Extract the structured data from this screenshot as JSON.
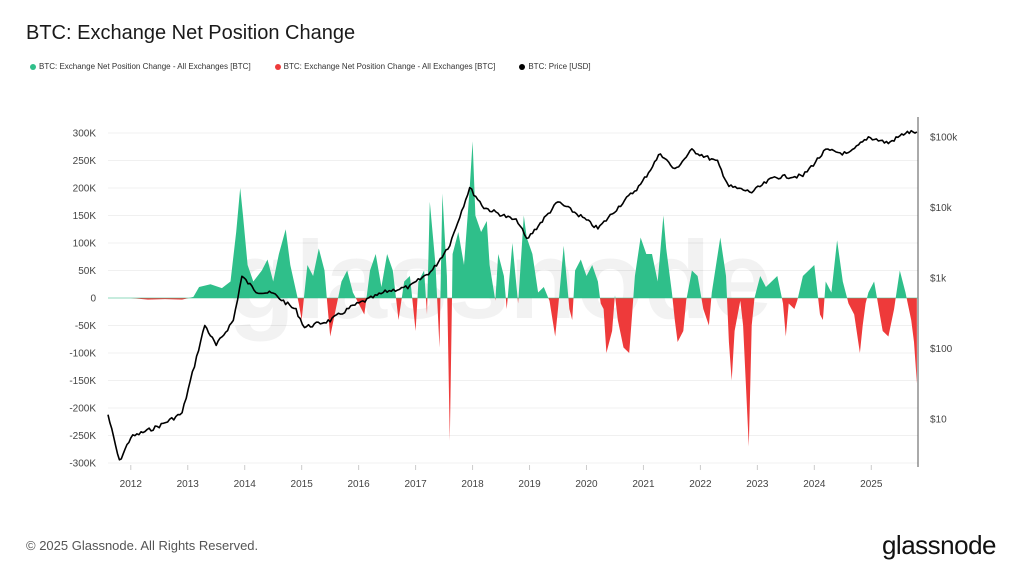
{
  "chart_data": {
    "type": "area",
    "title": "BTC: Exchange Net Position Change",
    "legend_placement": "top-left",
    "grid": true,
    "colors": {
      "positive": "#2fbf8a",
      "negative": "#ee3a3a",
      "price": "#000000"
    },
    "legend": [
      {
        "label": "BTC: Exchange Net Position Change - All Exchanges [BTC]",
        "color": "#2fbf8a"
      },
      {
        "label": "BTC: Exchange Net Position Change - All Exchanges [BTC]",
        "color": "#ee3a3a"
      },
      {
        "label": "BTC: Price [USD]",
        "color": "#000000"
      }
    ],
    "x_ticks": [
      "2012",
      "2013",
      "2014",
      "2015",
      "2016",
      "2017",
      "2018",
      "2019",
      "2020",
      "2021",
      "2022",
      "2023",
      "2024",
      "2025"
    ],
    "xlim": [
      2011.6,
      2025.82
    ],
    "y_left": {
      "ticks": [
        "300K",
        "250K",
        "200K",
        "150K",
        "100K",
        "50K",
        "0",
        "-50K",
        "-100K",
        "-150K",
        "-200K",
        "-250K",
        "-300K"
      ],
      "ylim": [
        -300000,
        300000
      ]
    },
    "y_right": {
      "scale": "log",
      "ticks": [
        "$100k",
        "$10k",
        "$1k",
        "$100",
        "$10"
      ],
      "ylim": [
        2,
        150000
      ]
    },
    "series": [
      {
        "key": "net_position",
        "unit": "BTC",
        "points": [
          [
            2011.6,
            0
          ],
          [
            2012.0,
            0
          ],
          [
            2012.3,
            -3000
          ],
          [
            2012.6,
            -2000
          ],
          [
            2012.9,
            -3000
          ],
          [
            2013.1,
            2000
          ],
          [
            2013.2,
            20000
          ],
          [
            2013.4,
            25000
          ],
          [
            2013.6,
            18000
          ],
          [
            2013.75,
            30000
          ],
          [
            2013.85,
            120000
          ],
          [
            2013.92,
            200000
          ],
          [
            2013.97,
            150000
          ],
          [
            2014.05,
            60000
          ],
          [
            2014.15,
            30000
          ],
          [
            2014.3,
            50000
          ],
          [
            2014.4,
            70000
          ],
          [
            2014.5,
            30000
          ],
          [
            2014.6,
            80000
          ],
          [
            2014.72,
            125000
          ],
          [
            2014.8,
            60000
          ],
          [
            2014.95,
            -10000
          ],
          [
            2015.0,
            -40000
          ],
          [
            2015.1,
            60000
          ],
          [
            2015.2,
            40000
          ],
          [
            2015.3,
            90000
          ],
          [
            2015.4,
            50000
          ],
          [
            2015.5,
            -70000
          ],
          [
            2015.6,
            -20000
          ],
          [
            2015.7,
            30000
          ],
          [
            2015.8,
            50000
          ],
          [
            2015.9,
            10000
          ],
          [
            2016.0,
            -10000
          ],
          [
            2016.1,
            -30000
          ],
          [
            2016.2,
            50000
          ],
          [
            2016.3,
            80000
          ],
          [
            2016.4,
            20000
          ],
          [
            2016.5,
            80000
          ],
          [
            2016.6,
            50000
          ],
          [
            2016.7,
            -40000
          ],
          [
            2016.8,
            30000
          ],
          [
            2016.9,
            40000
          ],
          [
            2017.0,
            -60000
          ],
          [
            2017.05,
            30000
          ],
          [
            2017.15,
            50000
          ],
          [
            2017.2,
            -30000
          ],
          [
            2017.25,
            175000
          ],
          [
            2017.35,
            60000
          ],
          [
            2017.42,
            -90000
          ],
          [
            2017.47,
            190000
          ],
          [
            2017.55,
            40000
          ],
          [
            2017.6,
            -260000
          ],
          [
            2017.65,
            80000
          ],
          [
            2017.75,
            120000
          ],
          [
            2017.85,
            60000
          ],
          [
            2017.95,
            200000
          ],
          [
            2018.0,
            285000
          ],
          [
            2018.05,
            150000
          ],
          [
            2018.15,
            120000
          ],
          [
            2018.25,
            140000
          ],
          [
            2018.3,
            60000
          ],
          [
            2018.4,
            -5000
          ],
          [
            2018.45,
            80000
          ],
          [
            2018.55,
            40000
          ],
          [
            2018.6,
            -20000
          ],
          [
            2018.7,
            100000
          ],
          [
            2018.8,
            -10000
          ],
          [
            2018.9,
            150000
          ],
          [
            2018.95,
            110000
          ],
          [
            2019.05,
            80000
          ],
          [
            2019.15,
            10000
          ],
          [
            2019.25,
            20000
          ],
          [
            2019.35,
            -5000
          ],
          [
            2019.45,
            -70000
          ],
          [
            2019.5,
            -20000
          ],
          [
            2019.6,
            95000
          ],
          [
            2019.7,
            -20000
          ],
          [
            2019.75,
            -40000
          ],
          [
            2019.8,
            50000
          ],
          [
            2019.9,
            70000
          ],
          [
            2020.0,
            40000
          ],
          [
            2020.1,
            60000
          ],
          [
            2020.2,
            30000
          ],
          [
            2020.25,
            -10000
          ],
          [
            2020.3,
            -20000
          ],
          [
            2020.35,
            -100000
          ],
          [
            2020.45,
            -60000
          ],
          [
            2020.5,
            5000
          ],
          [
            2020.55,
            -40000
          ],
          [
            2020.65,
            -90000
          ],
          [
            2020.75,
            -100000
          ],
          [
            2020.8,
            -30000
          ],
          [
            2020.85,
            40000
          ],
          [
            2020.95,
            110000
          ],
          [
            2021.05,
            80000
          ],
          [
            2021.15,
            80000
          ],
          [
            2021.25,
            30000
          ],
          [
            2021.35,
            150000
          ],
          [
            2021.4,
            90000
          ],
          [
            2021.5,
            10000
          ],
          [
            2021.55,
            -40000
          ],
          [
            2021.6,
            -80000
          ],
          [
            2021.7,
            -60000
          ],
          [
            2021.75,
            -5000
          ],
          [
            2021.85,
            50000
          ],
          [
            2021.95,
            40000
          ],
          [
            2022.05,
            -20000
          ],
          [
            2022.15,
            -50000
          ],
          [
            2022.2,
            10000
          ],
          [
            2022.35,
            110000
          ],
          [
            2022.45,
            40000
          ],
          [
            2022.5,
            -80000
          ],
          [
            2022.55,
            -150000
          ],
          [
            2022.6,
            -60000
          ],
          [
            2022.7,
            -5000
          ],
          [
            2022.75,
            -50000
          ],
          [
            2022.85,
            -270000
          ],
          [
            2022.9,
            -50000
          ],
          [
            2022.95,
            0
          ],
          [
            2023.05,
            40000
          ],
          [
            2023.15,
            20000
          ],
          [
            2023.25,
            30000
          ],
          [
            2023.35,
            40000
          ],
          [
            2023.45,
            -10000
          ],
          [
            2023.5,
            -70000
          ],
          [
            2023.55,
            -10000
          ],
          [
            2023.65,
            -20000
          ],
          [
            2023.7,
            -5000
          ],
          [
            2023.8,
            40000
          ],
          [
            2023.9,
            50000
          ],
          [
            2024.0,
            60000
          ],
          [
            2024.1,
            -30000
          ],
          [
            2024.15,
            -40000
          ],
          [
            2024.2,
            30000
          ],
          [
            2024.3,
            10000
          ],
          [
            2024.4,
            105000
          ],
          [
            2024.5,
            30000
          ],
          [
            2024.6,
            -10000
          ],
          [
            2024.7,
            -30000
          ],
          [
            2024.8,
            -100000
          ],
          [
            2024.85,
            -50000
          ],
          [
            2024.9,
            -10000
          ],
          [
            2024.95,
            10000
          ],
          [
            2025.05,
            30000
          ],
          [
            2025.15,
            -30000
          ],
          [
            2025.2,
            -60000
          ],
          [
            2025.3,
            -70000
          ],
          [
            2025.4,
            -20000
          ],
          [
            2025.5,
            50000
          ],
          [
            2025.6,
            10000
          ],
          [
            2025.7,
            -40000
          ],
          [
            2025.75,
            -80000
          ],
          [
            2025.8,
            -155000
          ]
        ]
      },
      {
        "key": "price",
        "unit": "USD",
        "points": [
          [
            2011.6,
            11.5
          ],
          [
            2011.8,
            2.5
          ],
          [
            2012.0,
            5.5
          ],
          [
            2012.5,
            8
          ],
          [
            2012.9,
            12
          ],
          [
            2013.3,
            215
          ],
          [
            2013.5,
            110
          ],
          [
            2013.8,
            250
          ],
          [
            2013.95,
            1050
          ],
          [
            2014.2,
            650
          ],
          [
            2014.5,
            600
          ],
          [
            2014.9,
            350
          ],
          [
            2015.05,
            200
          ],
          [
            2015.5,
            250
          ],
          [
            2015.9,
            400
          ],
          [
            2016.5,
            650
          ],
          [
            2016.9,
            750
          ],
          [
            2017.3,
            1300
          ],
          [
            2017.6,
            3000
          ],
          [
            2017.95,
            19000
          ],
          [
            2018.2,
            10000
          ],
          [
            2018.8,
            6300
          ],
          [
            2018.95,
            3500
          ],
          [
            2019.5,
            12000
          ],
          [
            2019.9,
            7500
          ],
          [
            2020.2,
            5000
          ],
          [
            2020.6,
            11000
          ],
          [
            2020.95,
            21000
          ],
          [
            2021.3,
            59000
          ],
          [
            2021.55,
            34000
          ],
          [
            2021.85,
            65000
          ],
          [
            2022.3,
            44000
          ],
          [
            2022.5,
            20000
          ],
          [
            2022.9,
            16500
          ],
          [
            2023.3,
            27000
          ],
          [
            2023.8,
            28000
          ],
          [
            2024.2,
            65000
          ],
          [
            2024.6,
            57000
          ],
          [
            2024.95,
            100000
          ],
          [
            2025.3,
            82000
          ],
          [
            2025.6,
            115000
          ],
          [
            2025.8,
            118000
          ]
        ]
      }
    ]
  },
  "watermark": "glassnode",
  "footer": {
    "copyright": "© 2025 Glassnode. All Rights Reserved.",
    "logo": "glassnode"
  }
}
